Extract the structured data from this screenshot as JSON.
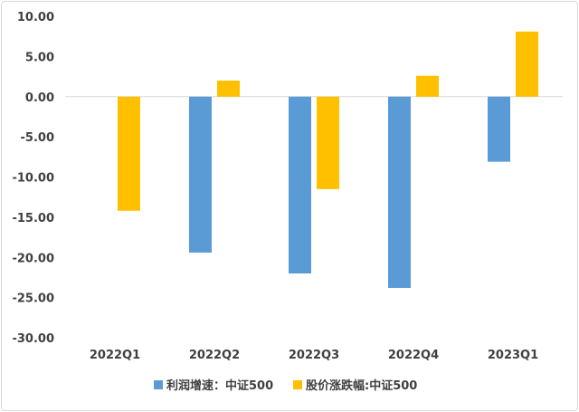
{
  "chart_data": {
    "type": "bar",
    "title": "",
    "xlabel": "",
    "ylabel": "",
    "categories": [
      "2022Q1",
      "2022Q2",
      "2022Q3",
      "2022Q4",
      "2023Q1"
    ],
    "series": [
      {
        "name": "利润增速：中证500",
        "color": "#5b9bd5",
        "values": [
          null,
          -19.4,
          -22.0,
          -23.8,
          -8.1
        ]
      },
      {
        "name": "股价涨跌幅:中证500",
        "color": "#ffc000",
        "values": [
          -14.2,
          2.0,
          -11.5,
          2.6,
          8.1
        ]
      }
    ],
    "ylim": [
      -30,
      10
    ],
    "yticks": [
      "10.00",
      "5.00",
      "0.00",
      "-5.00",
      "-10.00",
      "-15.00",
      "-20.00",
      "-25.00",
      "-30.00"
    ],
    "grid": false,
    "legend_position": "bottom"
  }
}
